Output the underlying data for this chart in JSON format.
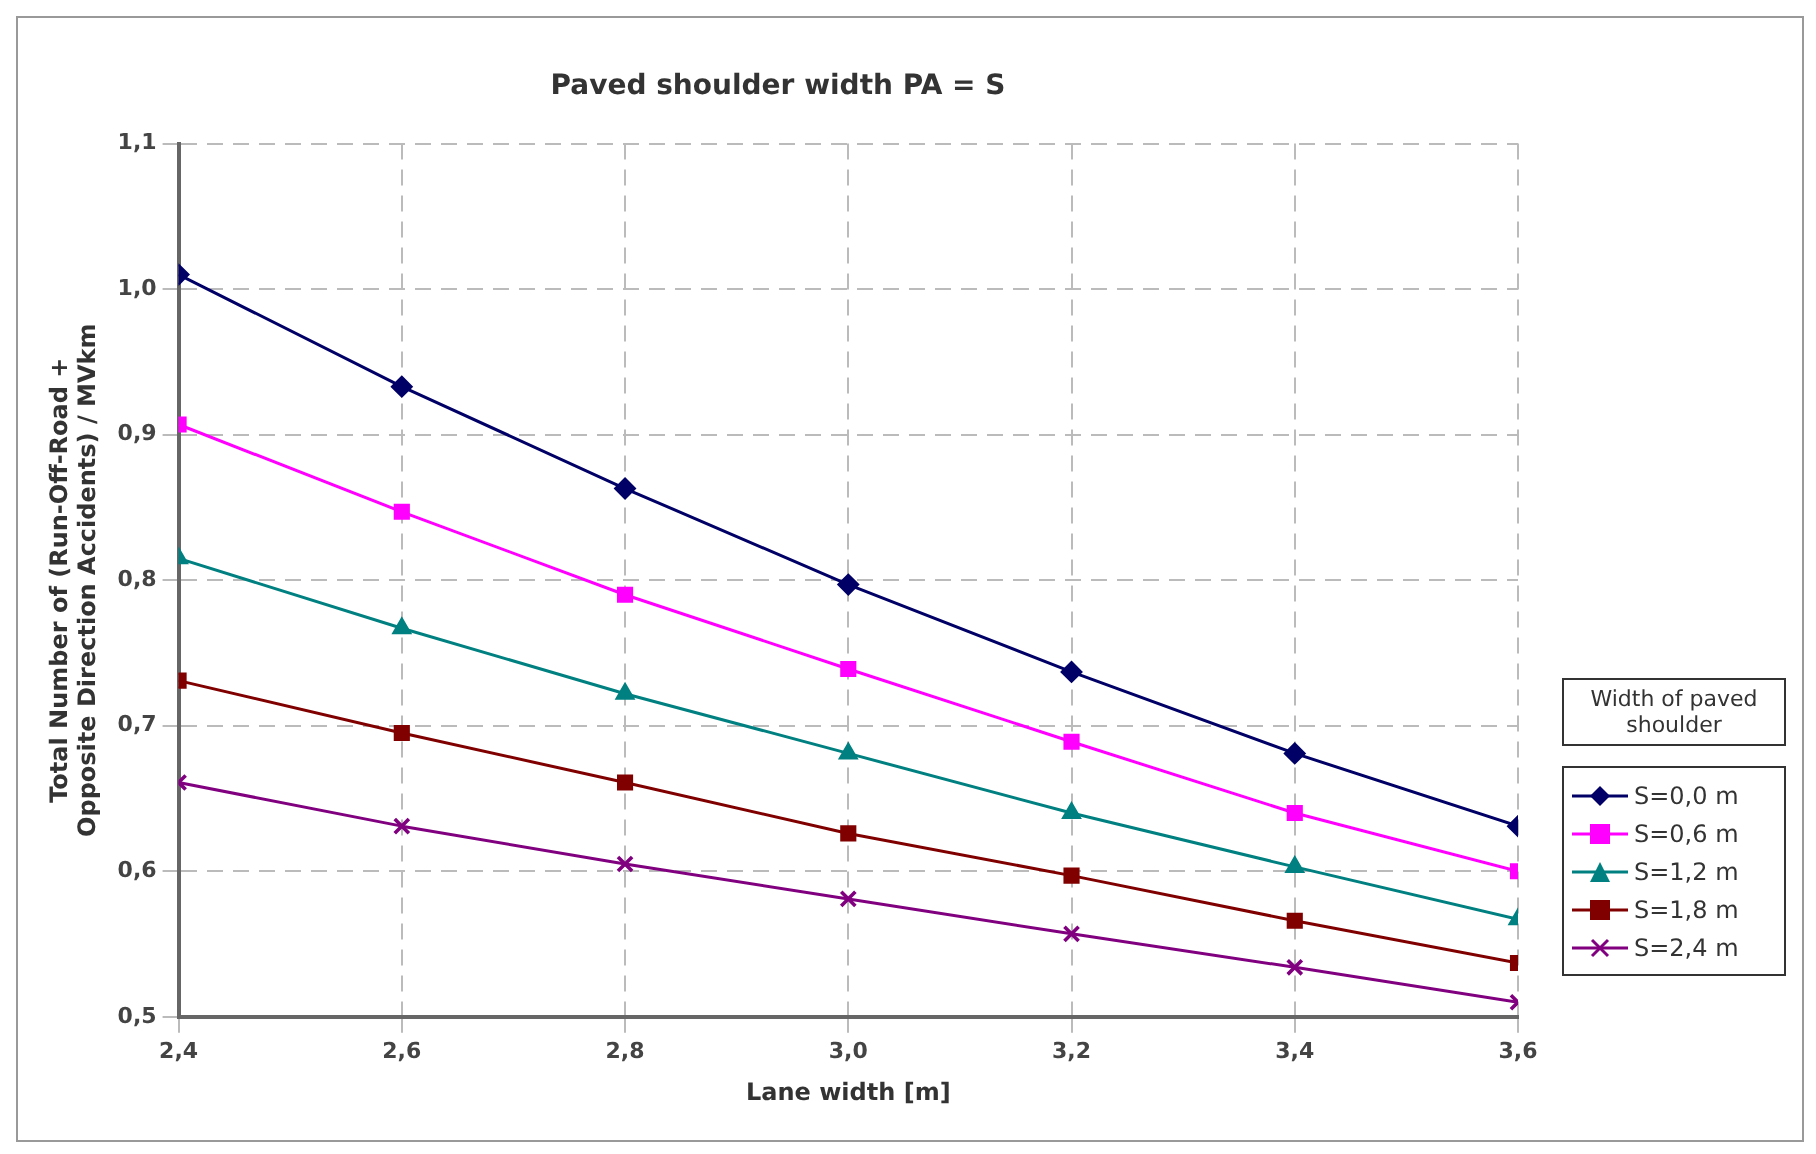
{
  "chart_data": {
    "type": "line",
    "title": "Paved shoulder width PA = S",
    "xlabel": "Lane width [m]",
    "ylabel": "Total Number of (Run-Off-Road + Opposite Direction Accidents) / MVkm",
    "legend_title": "Width of paved shoulder",
    "x": [
      2.4,
      2.6,
      2.8,
      3.0,
      3.2,
      3.4,
      3.6
    ],
    "xlim": [
      2.4,
      3.6
    ],
    "xticks": [
      {
        "value": 2.4,
        "label": "2,4"
      },
      {
        "value": 2.6,
        "label": "2,6"
      },
      {
        "value": 2.8,
        "label": "2,8"
      },
      {
        "value": 3.0,
        "label": "3,0"
      },
      {
        "value": 3.2,
        "label": "3,2"
      },
      {
        "value": 3.4,
        "label": "3,4"
      },
      {
        "value": 3.6,
        "label": "3,6"
      }
    ],
    "ylim": [
      0.5,
      1.1
    ],
    "yticks": [
      {
        "value": 0.5,
        "label": "0,5"
      },
      {
        "value": 0.6,
        "label": "0,6"
      },
      {
        "value": 0.7,
        "label": "0,7"
      },
      {
        "value": 0.8,
        "label": "0,8"
      },
      {
        "value": 0.9,
        "label": "0,9"
      },
      {
        "value": 1.0,
        "label": "1,0"
      },
      {
        "value": 1.1,
        "label": "1,1"
      }
    ],
    "grid": true,
    "legend": "right",
    "line_style": "solid",
    "series": [
      {
        "name": "S=0,0 m",
        "color": "#000066",
        "marker": "diamond",
        "values": [
          1.01,
          0.933,
          0.863,
          0.797,
          0.737,
          0.681,
          0.631
        ]
      },
      {
        "name": "S=0,6 m",
        "color": "#ff00ff",
        "marker": "square",
        "values": [
          0.907,
          0.847,
          0.79,
          0.739,
          0.689,
          0.64,
          0.6
        ]
      },
      {
        "name": "S=1,2 m",
        "color": "#008080",
        "marker": "triangle",
        "values": [
          0.815,
          0.767,
          0.722,
          0.681,
          0.64,
          0.603,
          0.567
        ]
      },
      {
        "name": "S=1,8 m",
        "color": "#800000",
        "marker": "square",
        "values": [
          0.731,
          0.695,
          0.661,
          0.626,
          0.597,
          0.566,
          0.537
        ]
      },
      {
        "name": "S=2,4 m",
        "color": "#800080",
        "marker": "cross",
        "values": [
          0.661,
          0.631,
          0.605,
          0.581,
          0.557,
          0.534,
          0.51
        ]
      }
    ]
  }
}
